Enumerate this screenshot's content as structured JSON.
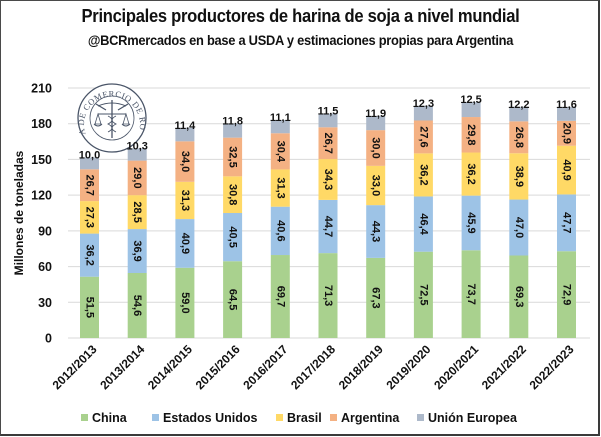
{
  "chart_data": {
    "type": "bar",
    "stacked": true,
    "title": "Principales productores de harina de soja a nivel mundial",
    "subtitle": "@BCRmercados en base a USDA y estimaciones propias para Argentina",
    "xlabel": "",
    "ylabel": "Millones de toneladas",
    "ylim": [
      0,
      210
    ],
    "yticks": [
      "0",
      "30",
      "60",
      "90",
      "120",
      "150",
      "180",
      "210"
    ],
    "grid": true,
    "legend_position": "bottom",
    "categories": [
      "2012/2013",
      "2013/2014",
      "2014/2015",
      "2015/2016",
      "2016/2017",
      "2017/2018",
      "2018/2019",
      "2019/2020",
      "2020/2021",
      "2021/2022",
      "2022/2023"
    ],
    "series": [
      {
        "name": "China",
        "color": "#A9D18E",
        "values": [
          51.5,
          54.6,
          59.0,
          64.5,
          69.7,
          71.3,
          67.3,
          72.5,
          73.7,
          69.3,
          72.9
        ],
        "labels": [
          "51,5",
          "54,6",
          "59,0",
          "64,5",
          "69,7",
          "71,3",
          "67,3",
          "72,5",
          "73,7",
          "69,3",
          "72,9"
        ]
      },
      {
        "name": "Estados Unidos",
        "color": "#9DC3E6",
        "values": [
          36.2,
          36.9,
          40.9,
          40.5,
          40.6,
          44.7,
          44.3,
          46.4,
          45.9,
          47.0,
          47.7
        ],
        "labels": [
          "36,2",
          "36,9",
          "40,9",
          "40,5",
          "40,6",
          "44,7",
          "44,3",
          "46,4",
          "45,9",
          "47,0",
          "47,7"
        ]
      },
      {
        "name": "Brasil",
        "color": "#FFD966",
        "values": [
          27.3,
          28.5,
          31.3,
          30.8,
          31.3,
          34.3,
          33.0,
          36.2,
          36.2,
          38.9,
          40.9
        ],
        "labels": [
          "27,3",
          "28,5",
          "31,3",
          "30,8",
          "31,3",
          "34,3",
          "33,0",
          "36,2",
          "36,2",
          "38,9",
          "40,9"
        ]
      },
      {
        "name": "Argentina",
        "color": "#F4B183",
        "values": [
          26.7,
          29.0,
          34.0,
          32.5,
          30.4,
          26.7,
          30.0,
          27.6,
          29.8,
          26.8,
          20.9
        ],
        "labels": [
          "26,7",
          "29,0",
          "34,0",
          "32,5",
          "30,4",
          "26,7",
          "30,0",
          "27,6",
          "29,8",
          "26,8",
          "20,9"
        ],
        "highlight_last_label_color": "#FF0000"
      },
      {
        "name": "Unión Europea",
        "color": "#ADB9CA",
        "values": [
          10.0,
          10.3,
          11.4,
          11.8,
          11.1,
          11.5,
          11.9,
          12.3,
          12.5,
          12.2,
          11.6
        ],
        "labels": [
          "10,0",
          "10,3",
          "11,4",
          "11,8",
          "11,1",
          "11,5",
          "11,9",
          "12,3",
          "12,5",
          "12,2",
          "11,6"
        ]
      }
    ]
  },
  "logo": {
    "name": "seal-logo",
    "text": "BOLSA DE COMERCIO DE ROSARIO"
  }
}
